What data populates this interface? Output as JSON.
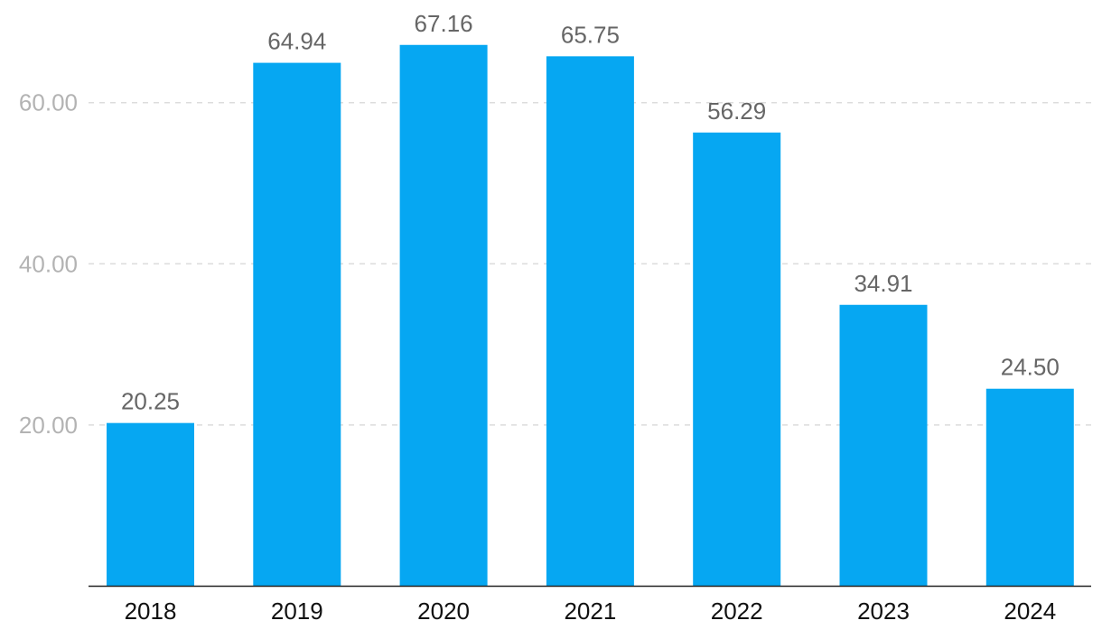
{
  "chart_data": {
    "type": "bar",
    "title": "",
    "xlabel": "",
    "ylabel": "",
    "categories": [
      "2018",
      "2019",
      "2020",
      "2021",
      "2022",
      "2023",
      "2024"
    ],
    "values": [
      20.25,
      64.94,
      67.16,
      65.75,
      56.29,
      34.91,
      24.5
    ],
    "value_labels": [
      "20.25",
      "64.94",
      "67.16",
      "65.75",
      "56.29",
      "34.91",
      "24.50"
    ],
    "yticks": [
      20,
      40,
      60
    ],
    "ytick_labels": [
      "20.00",
      "40.00",
      "60.00"
    ],
    "ylim": [
      0,
      70
    ],
    "grid": true,
    "legend": "none",
    "bar_color": "#06a7f2"
  }
}
